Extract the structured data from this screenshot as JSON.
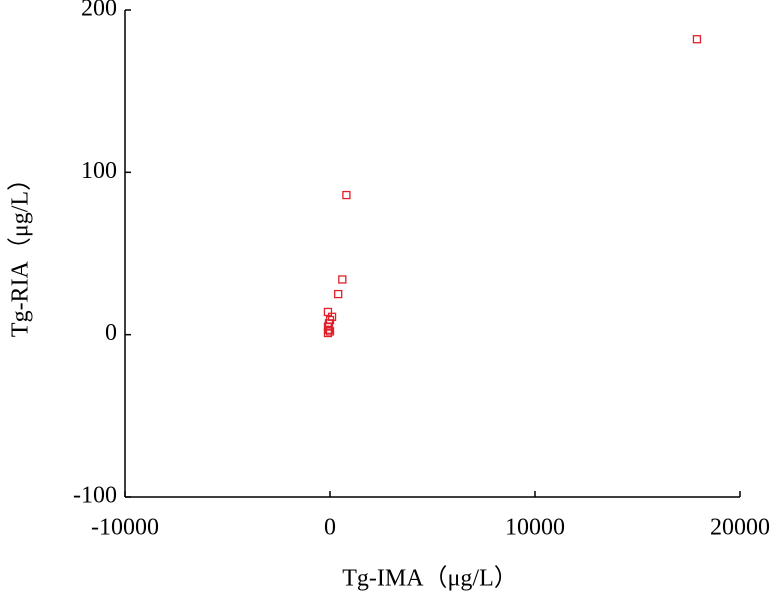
{
  "chart_data": {
    "type": "scatter",
    "xlabel": "Tg-IMA（μg/L）",
    "ylabel": "Tg-RIA（μg/L）",
    "x": [
      17900,
      800,
      600,
      400,
      -100,
      100,
      0,
      -50,
      -100,
      -50,
      0,
      -100
    ],
    "values": [
      182,
      86,
      34,
      25,
      14,
      11,
      9,
      7,
      5,
      3,
      2,
      1
    ],
    "color": "#e0202a",
    "xlim": [
      -10000,
      20000
    ],
    "xticks": [
      -10000,
      0,
      10000,
      20000
    ],
    "ylim": [
      -100,
      200
    ],
    "yticks": [
      -100,
      0,
      100,
      200
    ]
  }
}
